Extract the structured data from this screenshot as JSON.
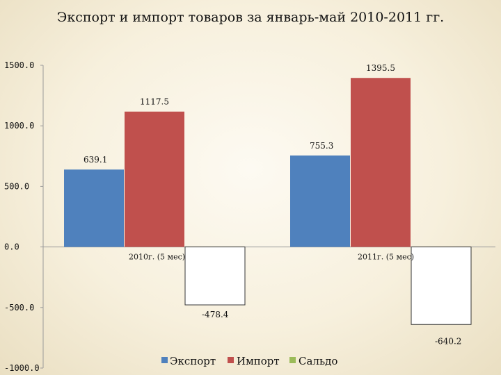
{
  "chart_data": {
    "type": "bar",
    "title": "Экспорт и импорт товаров за январь-май 2010-2011 гг.",
    "categories": [
      "2010г. (5 мес)",
      "2011г. (5 мес)"
    ],
    "series": [
      {
        "name": "Экспорт",
        "values": [
          639.1,
          755.3
        ],
        "color": "#4f81bd",
        "labels": [
          "639.1",
          "755.3"
        ]
      },
      {
        "name": "Импорт",
        "values": [
          1117.5,
          1395.5
        ],
        "color": "#c0504d",
        "labels": [
          "1117.5",
          "1395.5"
        ]
      },
      {
        "name": "Сальдо",
        "values": [
          -478.4,
          -640.2
        ],
        "color": "#9bbb59",
        "labels": [
          "-478.4",
          "-640.2"
        ]
      }
    ],
    "ylim": [
      -1000,
      1500
    ],
    "yticks": [
      {
        "value": 1500,
        "label": "1500.0"
      },
      {
        "value": 1000,
        "label": "1000.0"
      },
      {
        "value": 500,
        "label": "500.0"
      },
      {
        "value": 0,
        "label": "0.0"
      },
      {
        "value": -500,
        "label": "-500.0"
      },
      {
        "value": -1000,
        "label": "-1000.0"
      }
    ],
    "grid": false,
    "legend_position": "bottom"
  }
}
